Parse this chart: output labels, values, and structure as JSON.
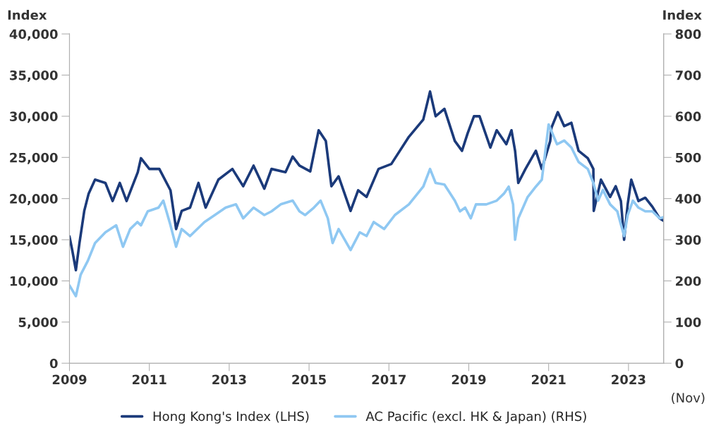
{
  "chart_data": {
    "type": "line",
    "ylabel": "Index",
    "y2label": "Index",
    "xlim": [
      2009,
      2023.88
    ],
    "xticks": [
      2009,
      2011,
      2013,
      2015,
      2017,
      2019,
      2021,
      2023
    ],
    "ylim": [
      0,
      40000
    ],
    "yticks": [
      {
        "value": 0,
        "label": "0"
      },
      {
        "value": 5000,
        "label": "5,000"
      },
      {
        "value": 10000,
        "label": "10,000"
      },
      {
        "value": 15000,
        "label": "15,000"
      },
      {
        "value": 20000,
        "label": "20,000"
      },
      {
        "value": 25000,
        "label": "25,000"
      },
      {
        "value": 30000,
        "label": "30,000"
      },
      {
        "value": 35000,
        "label": "35,000"
      },
      {
        "value": 40000,
        "label": "40,000"
      }
    ],
    "y2lim": [
      0,
      800
    ],
    "y2ticks": [
      0,
      100,
      200,
      300,
      400,
      500,
      600,
      700,
      800
    ],
    "grid": false,
    "legend": "bottom",
    "marker": "none",
    "line_style": "solid",
    "annotations": [
      "(Nov)"
    ],
    "series": [
      {
        "name": "Hong Kong's Index (LHS)",
        "color": "#1b3a7a",
        "x": [
          2009.0,
          2009.07,
          2009.16,
          2009.25,
          2009.37,
          2009.48,
          2009.64,
          2009.9,
          2010.08,
          2010.26,
          2010.43,
          2010.71,
          2010.79,
          2011.0,
          2011.25,
          2011.53,
          2011.67,
          2011.81,
          2012.02,
          2012.23,
          2012.41,
          2012.73,
          2013.08,
          2013.35,
          2013.61,
          2013.88,
          2014.06,
          2014.41,
          2014.59,
          2014.76,
          2015.03,
          2015.24,
          2015.42,
          2015.56,
          2015.74,
          2016.04,
          2016.23,
          2016.44,
          2016.74,
          2017.06,
          2017.5,
          2017.86,
          2018.03,
          2018.17,
          2018.39,
          2018.65,
          2018.83,
          2018.97,
          2019.13,
          2019.27,
          2019.54,
          2019.7,
          2019.94,
          2020.07,
          2020.16,
          2020.24,
          2020.42,
          2020.68,
          2020.83,
          2021.04,
          2021.07,
          2021.23,
          2021.39,
          2021.57,
          2021.75,
          2021.98,
          2022.12,
          2022.13,
          2022.31,
          2022.54,
          2022.68,
          2022.81,
          2022.89,
          2022.98,
          2023.07,
          2023.25,
          2023.42,
          2023.6,
          2023.78,
          2023.88
        ],
        "values": [
          15400,
          13700,
          11300,
          14600,
          18500,
          20600,
          22300,
          21900,
          19700,
          21900,
          19700,
          23200,
          24900,
          23600,
          23600,
          21000,
          16300,
          18500,
          18900,
          21900,
          18900,
          22300,
          23600,
          21500,
          24000,
          21200,
          23600,
          23200,
          25100,
          24000,
          23300,
          28300,
          27000,
          21500,
          22700,
          18500,
          21000,
          20200,
          23600,
          24200,
          27500,
          29600,
          33000,
          30000,
          30900,
          27000,
          25800,
          27900,
          30000,
          30000,
          26200,
          28300,
          26600,
          28300,
          25800,
          21900,
          23600,
          25800,
          23600,
          27000,
          28600,
          30500,
          28800,
          29200,
          25800,
          24900,
          23600,
          18500,
          22300,
          20200,
          21500,
          19700,
          15000,
          19300,
          22300,
          19700,
          20100,
          19000,
          17600,
          17300
        ]
      },
      {
        "name": "AC Pacific (excl. HK & Japan) (RHS)",
        "color": "#8fc8f2",
        "axis": "y2",
        "x": [
          2009.0,
          2009.16,
          2009.28,
          2009.46,
          2009.64,
          2009.9,
          2010.17,
          2010.34,
          2010.52,
          2010.7,
          2010.79,
          2010.96,
          2011.23,
          2011.35,
          2011.53,
          2011.67,
          2011.81,
          2012.02,
          2012.38,
          2012.64,
          2012.91,
          2013.17,
          2013.35,
          2013.61,
          2013.88,
          2014.06,
          2014.29,
          2014.59,
          2014.76,
          2014.9,
          2015.12,
          2015.29,
          2015.47,
          2015.59,
          2015.74,
          2016.04,
          2016.27,
          2016.44,
          2016.62,
          2016.88,
          2017.15,
          2017.5,
          2017.86,
          2018.03,
          2018.17,
          2018.39,
          2018.65,
          2018.78,
          2018.91,
          2019.05,
          2019.18,
          2019.44,
          2019.7,
          2019.88,
          2020.0,
          2020.11,
          2020.16,
          2020.24,
          2020.47,
          2020.68,
          2020.83,
          2021.0,
          2021.21,
          2021.39,
          2021.57,
          2021.75,
          2021.98,
          2022.12,
          2022.24,
          2022.36,
          2022.54,
          2022.72,
          2022.89,
          2022.98,
          2023.11,
          2023.25,
          2023.42,
          2023.6,
          2023.78,
          2023.88
        ],
        "values": [
          189,
          163,
          215,
          249,
          292,
          318,
          335,
          283,
          326,
          343,
          335,
          369,
          378,
          395,
          335,
          283,
          326,
          309,
          343,
          360,
          378,
          386,
          352,
          378,
          360,
          369,
          386,
          395,
          369,
          360,
          378,
          395,
          352,
          292,
          326,
          275,
          318,
          309,
          343,
          326,
          360,
          386,
          429,
          472,
          438,
          434,
          395,
          369,
          378,
          352,
          386,
          386,
          395,
          412,
          429,
          386,
          300,
          352,
          403,
          429,
          446,
          580,
          532,
          541,
          524,
          489,
          472,
          438,
          395,
          421,
          386,
          369,
          309,
          360,
          395,
          378,
          369,
          369,
          352,
          355
        ]
      }
    ]
  }
}
